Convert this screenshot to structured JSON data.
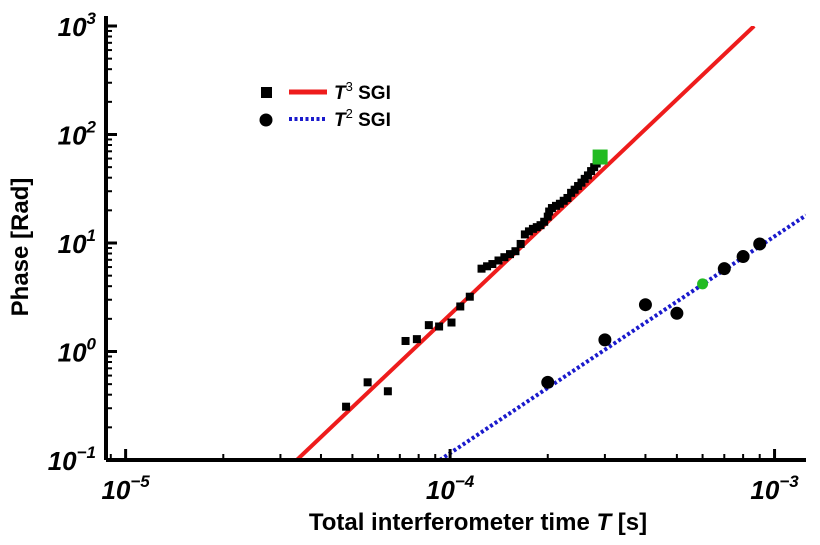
{
  "chart_data": {
    "type": "scatter",
    "scale": "log-log",
    "xlabel_prefix": "Total interferometer time ",
    "xlabel_var": "T",
    "xlabel_suffix": " [s]",
    "ylabel": "Phase [Rad]",
    "xlim": [
      8.7e-06,
      0.00125
    ],
    "ylim": [
      0.1,
      1000
    ],
    "x_ticks": [
      {
        "value": 1e-05,
        "base": "10",
        "exp": "−5"
      },
      {
        "value": 0.0001,
        "base": "10",
        "exp": "−4"
      },
      {
        "value": 0.001,
        "base": "10",
        "exp": "−3"
      }
    ],
    "y_ticks": [
      {
        "value": 0.1,
        "base": "10",
        "exp": "−1"
      },
      {
        "value": 1,
        "base": "10",
        "exp": "0"
      },
      {
        "value": 10,
        "base": "10",
        "exp": "1"
      },
      {
        "value": 100,
        "base": "10",
        "exp": "2"
      },
      {
        "value": 1000,
        "base": "10",
        "exp": "3"
      }
    ],
    "legend": {
      "position": "top-left",
      "entries": [
        {
          "var": "T",
          "exp": "3",
          "label": " SGI",
          "marker": "square",
          "line_color": "#ee1c1c",
          "line_style": "solid"
        },
        {
          "var": "T",
          "exp": "2",
          "label": " SGI",
          "marker": "circle",
          "line_color": "#1a1acc",
          "line_style": "dotted"
        }
      ]
    },
    "fit_lines": [
      {
        "name": "T3 fit",
        "color": "#ee1c1c",
        "style": "solid",
        "x_range": [
          3.37e-05,
          0.000865
        ],
        "y_range": [
          0.1,
          1000
        ]
      },
      {
        "name": "T2 fit",
        "color": "#1a1acc",
        "style": "dotted",
        "x_range": [
          9.3e-05,
          0.00125
        ],
        "y_range": [
          0.1,
          18
        ]
      }
    ],
    "series": [
      {
        "name": "T3 SGI data",
        "marker": "square",
        "color": "#000000",
        "points": [
          [
            4.78e-05,
            0.31
          ],
          [
            5.57e-05,
            0.52
          ],
          [
            6.43e-05,
            0.43
          ],
          [
            7.29e-05,
            1.25
          ],
          [
            7.9e-05,
            1.3
          ],
          [
            8.6e-05,
            1.75
          ],
          [
            9.25e-05,
            1.7
          ],
          [
            0.000101,
            1.85
          ],
          [
            0.0001075,
            2.6
          ],
          [
            0.000115,
            3.2
          ],
          [
            0.000125,
            5.8
          ],
          [
            0.00013,
            6.1
          ],
          [
            0.000135,
            6.4
          ],
          [
            0.000141,
            6.9
          ],
          [
            0.000147,
            7.4
          ],
          [
            0.000153,
            7.9
          ],
          [
            0.000159,
            8.4
          ],
          [
            0.000165,
            9.8
          ],
          [
            0.00017,
            12.0
          ],
          [
            0.000175,
            12.8
          ],
          [
            0.00018,
            13.5
          ],
          [
            0.000185,
            14.0
          ],
          [
            0.00019,
            14.6
          ],
          [
            0.000195,
            15.7
          ],
          [
            0.0002,
            17.5
          ],
          [
            0.000202,
            19.5
          ],
          [
            0.000206,
            21.0
          ],
          [
            0.000212,
            22.0
          ],
          [
            0.000218,
            23.0
          ],
          [
            0.000224,
            24.5
          ],
          [
            0.00023,
            26.0
          ],
          [
            0.000236,
            29.0
          ],
          [
            0.000242,
            31.0
          ],
          [
            0.000248,
            33.5
          ],
          [
            0.000254,
            36.0
          ],
          [
            0.00026,
            39.0
          ],
          [
            0.000266,
            42.0
          ],
          [
            0.000272,
            46.0
          ],
          [
            0.000278,
            50.0
          ],
          [
            0.000283,
            54.0
          ]
        ]
      },
      {
        "name": "T2 SGI data",
        "marker": "circle",
        "color": "#000000",
        "points": [
          [
            0.0002,
            0.52
          ],
          [
            0.0003,
            1.28
          ],
          [
            0.0004,
            2.7
          ],
          [
            0.0005,
            2.25
          ],
          [
            0.0007,
            5.8
          ],
          [
            0.0008,
            7.5
          ],
          [
            0.0009,
            9.8
          ]
        ]
      },
      {
        "name": "highlight",
        "marker": "mixed",
        "color": "#22bb22",
        "points": [
          {
            "marker": "square",
            "x": 0.00029,
            "y": 62.0
          },
          {
            "marker": "circle",
            "x": 0.0006,
            "y": 4.2
          }
        ]
      }
    ]
  }
}
